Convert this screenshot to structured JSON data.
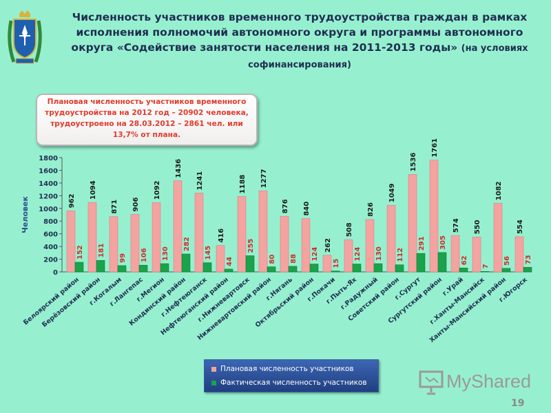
{
  "title": {
    "main": "Численность участников временного трудоустройства граждан в рамках исполнения полномочий автономного округа и программы автономного округа «Содействие занятости населения на 2011-2013 годы»",
    "sub": "(на условиях софинансирования)"
  },
  "callout": {
    "text": "Плановая численность участников временного трудоустройства на 2012 год – 20902 человека, трудоустроено на 28.03.2012 – 2861 чел. или 13,7% от плана."
  },
  "watermark": {
    "text": "MyShared"
  },
  "page_number": "19",
  "colors": {
    "background": "#96f0cf",
    "planned": "#f4a3a1",
    "actual": "#1aa34a",
    "planned_label": "#1a1a1a",
    "actual_label": "#d22b2b"
  },
  "icons": {
    "emblem": "coat-of-arms-icon",
    "watermark": "presentation-board-icon"
  },
  "chart_data": {
    "type": "bar",
    "ylabel": "Человек",
    "ylim": [
      0,
      1800
    ],
    "yticks": [
      0,
      200,
      400,
      600,
      800,
      1000,
      1200,
      1400,
      1600,
      1800
    ],
    "categories": [
      "Белоярский район",
      "Берёзовский район",
      "г.Когалым",
      "г.Лангепас",
      "г.Мегион",
      "Кондинский район",
      "г.Нефтеюганск",
      "Нефтеюганский район",
      "г.Нижневартовск",
      "Нижневартовский район",
      "г.Нягань",
      "Октябрьский район",
      "г.Покачи",
      "г.Пыть-Ях",
      "г.Радужный",
      "Советский район",
      "г.Сургут",
      "Сургутский район",
      "г.Урай",
      "г.Ханты-Мансийск",
      "Ханты-Мансийский район",
      "г.Югорск"
    ],
    "series": [
      {
        "name": "Плановая численность участников",
        "values": [
          962,
          1094,
          871,
          906,
          1092,
          1436,
          1241,
          416,
          1188,
          1277,
          876,
          840,
          262,
          508,
          826,
          1049,
          1536,
          1761,
          574,
          550,
          1082,
          554
        ]
      },
      {
        "name": "Фактическая численность участников",
        "values": [
          152,
          181,
          99,
          106,
          130,
          282,
          145,
          44,
          255,
          80,
          88,
          124,
          15,
          124,
          130,
          112,
          291,
          305,
          62,
          7,
          56,
          73
        ]
      }
    ],
    "legend": "bottom-center",
    "grid": false
  }
}
